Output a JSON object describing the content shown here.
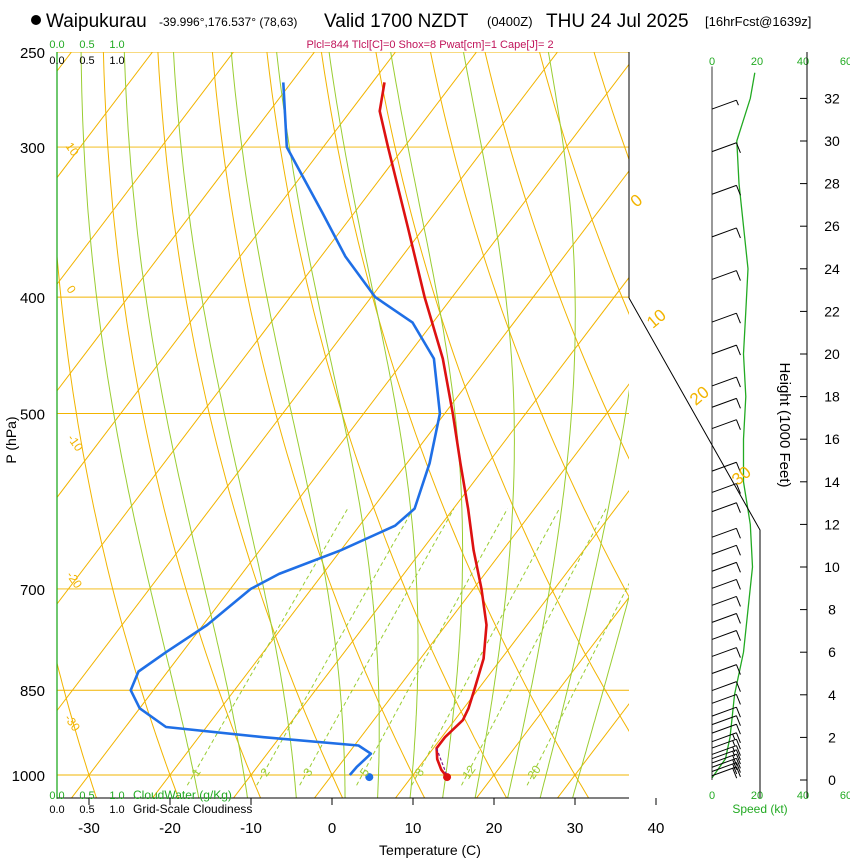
{
  "header": {
    "location": "Waipukurau",
    "coords": "-39.996°,176.537° (78,63)",
    "valid": "Valid 1700 NZDT",
    "utc": "(0400Z)",
    "date": "THU 24 Jul 2025",
    "forecast": "[16hrFcst@1639z]",
    "params": "Plcl=844 Tlcl[C]=0 Shox=8 Pwat[cm]=1 Cape[J]= 2"
  },
  "colors": {
    "temperature": "#dd1111",
    "dewpoint": "#1f6fe6",
    "isotherm": "#f2b400",
    "dry_adiabat": "#f2b400",
    "moist_adiabat": "#9acd32",
    "mixing_ratio": "#9acd32",
    "wind_profile": "#22aa22",
    "cloud_water": "#22aa22",
    "pressure_line": "#f2b400"
  },
  "chart_data": {
    "type": "skew-t",
    "title": "Waipukurau skew-T forecast sounding",
    "xlabel": "Temperature (C)",
    "ylabel": "P (hPa)",
    "y2label": "Height (1000 Feet)",
    "x_ticks": [
      -30,
      -20,
      -10,
      0,
      10,
      20,
      30,
      40
    ],
    "p_ticks": [
      250,
      300,
      400,
      500,
      700,
      850,
      1000
    ],
    "p_range": [
      1020,
      250
    ],
    "height_ticks": [
      0,
      2,
      4,
      6,
      8,
      10,
      12,
      14,
      16,
      18,
      20,
      22,
      24,
      26,
      28,
      30,
      32
    ],
    "temperature_profile": [
      {
        "p": 1006,
        "t": 14.6
      },
      {
        "p": 990,
        "t": 13.0
      },
      {
        "p": 970,
        "t": 11.5
      },
      {
        "p": 950,
        "t": 10.4
      },
      {
        "p": 930,
        "t": 10.4
      },
      {
        "p": 900,
        "t": 11.0
      },
      {
        "p": 880,
        "t": 10.6
      },
      {
        "p": 850,
        "t": 9.6
      },
      {
        "p": 800,
        "t": 7.8
      },
      {
        "p": 750,
        "t": 5.0
      },
      {
        "p": 700,
        "t": 1.0
      },
      {
        "p": 650,
        "t": -3.6
      },
      {
        "p": 600,
        "t": -8.2
      },
      {
        "p": 550,
        "t": -13.4
      },
      {
        "p": 500,
        "t": -19.0
      },
      {
        "p": 450,
        "t": -25.4
      },
      {
        "p": 400,
        "t": -33.4
      },
      {
        "p": 350,
        "t": -42.0
      },
      {
        "p": 300,
        "t": -52.0
      },
      {
        "p": 280,
        "t": -56.4
      },
      {
        "p": 265,
        "t": -58.5
      }
    ],
    "dewpoint_profile": [
      {
        "p": 1000,
        "t": 2.2
      },
      {
        "p": 985,
        "t": 2.3
      },
      {
        "p": 960,
        "t": 2.8
      },
      {
        "p": 945,
        "t": 0.5
      },
      {
        "p": 930,
        "t": -12.0
      },
      {
        "p": 912,
        "t": -25.0
      },
      {
        "p": 880,
        "t": -30.0
      },
      {
        "p": 850,
        "t": -32.8
      },
      {
        "p": 820,
        "t": -33.6
      },
      {
        "p": 790,
        "t": -32.0
      },
      {
        "p": 750,
        "t": -29.5
      },
      {
        "p": 700,
        "t": -27.5
      },
      {
        "p": 680,
        "t": -25.4
      },
      {
        "p": 650,
        "t": -20.0
      },
      {
        "p": 620,
        "t": -15.6
      },
      {
        "p": 600,
        "t": -14.8
      },
      {
        "p": 550,
        "t": -17.2
      },
      {
        "p": 500,
        "t": -20.6
      },
      {
        "p": 450,
        "t": -26.5
      },
      {
        "p": 420,
        "t": -32.5
      },
      {
        "p": 400,
        "t": -39.5
      },
      {
        "p": 370,
        "t": -47.0
      },
      {
        "p": 340,
        "t": -54.0
      },
      {
        "p": 300,
        "t": -64.5
      },
      {
        "p": 265,
        "t": -71.0
      }
    ],
    "surface_temperature_marker": {
      "p": 1004,
      "t": 14.4
    },
    "surface_dewpoint_marker": {
      "p": 1004,
      "t": 4.8
    },
    "isotherm_labels": [
      "10",
      "0",
      "-10",
      "-20",
      "-30"
    ],
    "dry_adiabat_labels": [
      "0",
      "10",
      "20",
      "30"
    ],
    "mixing_ratio_labels": [
      "1",
      "2",
      "3",
      "5",
      "8",
      "12",
      "20"
    ],
    "cloud_water_ticks": [
      "0.0",
      "0.5",
      "1.0"
    ],
    "cloud_water_label": "CloudWater (g/Kg)",
    "cloudiness_ticks": [
      "0.0",
      "0.5",
      "1.0"
    ],
    "cloudiness_label": "Grid-Scale Cloudiness",
    "wind_speed_ticks": [
      "0",
      "20",
      "40",
      "60"
    ],
    "wind_speed_label": "Speed (kt)",
    "wind_speed_profile": [
      {
        "h_kft": 0.1,
        "kt": 0
      },
      {
        "h_kft": 1,
        "kt": 6
      },
      {
        "h_kft": 2,
        "kt": 8
      },
      {
        "h_kft": 3,
        "kt": 9
      },
      {
        "h_kft": 4,
        "kt": 10
      },
      {
        "h_kft": 5,
        "kt": 12
      },
      {
        "h_kft": 6,
        "kt": 14
      },
      {
        "h_kft": 8,
        "kt": 16
      },
      {
        "h_kft": 10,
        "kt": 18
      },
      {
        "h_kft": 12,
        "kt": 17
      },
      {
        "h_kft": 14,
        "kt": 14
      },
      {
        "h_kft": 16,
        "kt": 14
      },
      {
        "h_kft": 18,
        "kt": 15
      },
      {
        "h_kft": 20,
        "kt": 14
      },
      {
        "h_kft": 22,
        "kt": 15
      },
      {
        "h_kft": 24,
        "kt": 16
      },
      {
        "h_kft": 26,
        "kt": 14
      },
      {
        "h_kft": 28,
        "kt": 12
      },
      {
        "h_kft": 30,
        "kt": 11
      },
      {
        "h_kft": 32,
        "kt": 17
      },
      {
        "h_kft": 33.2,
        "kt": 19
      }
    ],
    "wind_barbs": [
      {
        "h_kft": 0.2,
        "kt": 20
      },
      {
        "h_kft": 0.4,
        "kt": 20
      },
      {
        "h_kft": 0.6,
        "kt": 20
      },
      {
        "h_kft": 0.8,
        "kt": 20
      },
      {
        "h_kft": 1.0,
        "kt": 15
      },
      {
        "h_kft": 1.2,
        "kt": 15
      },
      {
        "h_kft": 1.5,
        "kt": 15
      },
      {
        "h_kft": 1.8,
        "kt": 15
      },
      {
        "h_kft": 2.2,
        "kt": 10
      },
      {
        "h_kft": 2.6,
        "kt": 10
      },
      {
        "h_kft": 3.0,
        "kt": 10
      },
      {
        "h_kft": 3.6,
        "kt": 10
      },
      {
        "h_kft": 4.2,
        "kt": 10
      },
      {
        "h_kft": 5.0,
        "kt": 10
      },
      {
        "h_kft": 5.8,
        "kt": 10
      },
      {
        "h_kft": 6.6,
        "kt": 10
      },
      {
        "h_kft": 7.4,
        "kt": 10
      },
      {
        "h_kft": 8.2,
        "kt": 10
      },
      {
        "h_kft": 9.0,
        "kt": 10
      },
      {
        "h_kft": 9.8,
        "kt": 10
      },
      {
        "h_kft": 10.6,
        "kt": 10
      },
      {
        "h_kft": 11.4,
        "kt": 10
      },
      {
        "h_kft": 12.6,
        "kt": 10
      },
      {
        "h_kft": 13.5,
        "kt": 10
      },
      {
        "h_kft": 14.5,
        "kt": 10
      },
      {
        "h_kft": 16.5,
        "kt": 10
      },
      {
        "h_kft": 17.5,
        "kt": 10
      },
      {
        "h_kft": 18.5,
        "kt": 10
      },
      {
        "h_kft": 20.0,
        "kt": 10
      },
      {
        "h_kft": 21.5,
        "kt": 10
      },
      {
        "h_kft": 23.5,
        "kt": 10
      },
      {
        "h_kft": 25.5,
        "kt": 10
      },
      {
        "h_kft": 27.5,
        "kt": 10
      },
      {
        "h_kft": 29.5,
        "kt": 10
      },
      {
        "h_kft": 31.5,
        "kt": 5
      }
    ]
  }
}
